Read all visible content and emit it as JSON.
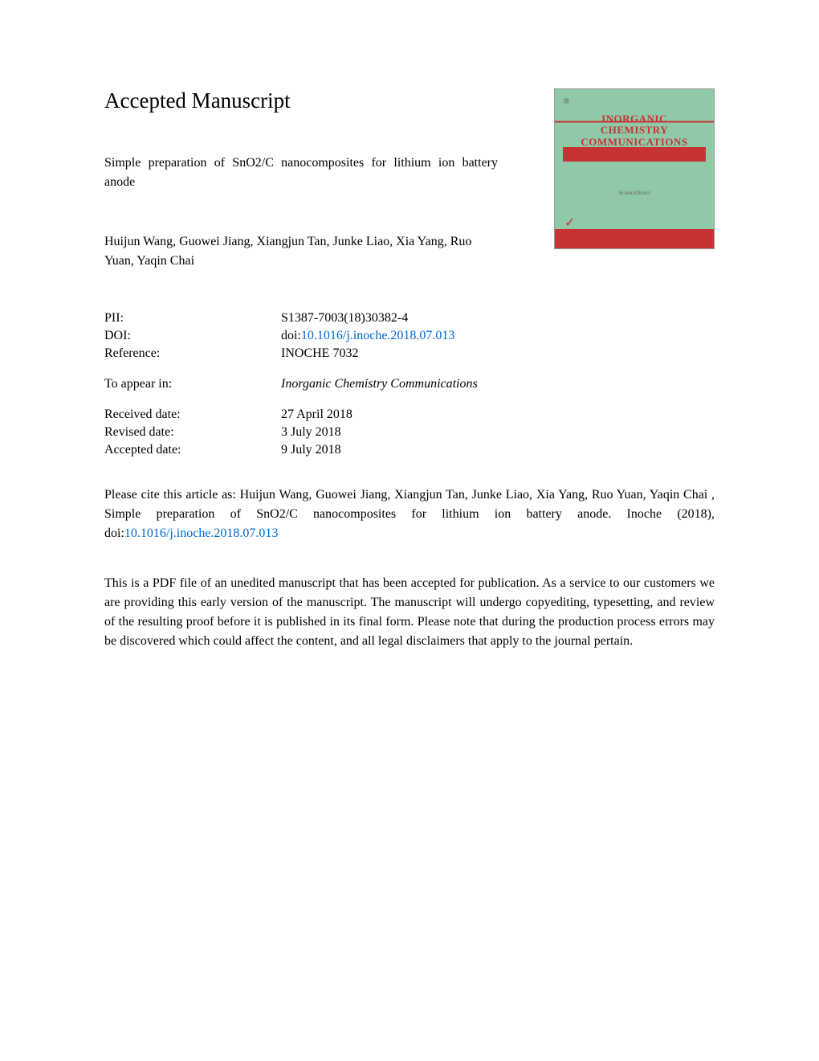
{
  "page_title": "Accepted Manuscript",
  "article_title": "Simple preparation of SnO2/C nanocomposites for lithium ion battery anode",
  "authors": "Huijun Wang, Guowei Jiang, Xiangjun Tan, Junke Liao, Xia Yang, Ruo Yuan, Yaqin Chai",
  "journal_cover": {
    "title_line1": "INORGANIC",
    "title_line2": "CHEMISTRY",
    "title_line3": "COMMUNICATIONS",
    "center_text": "ScienceDirect",
    "bg_color": "#8fc9a8",
    "accent_color": "#c73333"
  },
  "metadata": {
    "pii_label": "PII:",
    "pii_value": "S1387-7003(18)30382-4",
    "doi_label": "DOI:",
    "doi_prefix": "doi:",
    "doi_link": "10.1016/j.inoche.2018.07.013",
    "reference_label": "Reference:",
    "reference_value": "INOCHE 7032",
    "appear_label": "To appear in:",
    "appear_value": "Inorganic Chemistry Communications",
    "received_label": "Received date:",
    "received_value": "27 April 2018",
    "revised_label": "Revised date:",
    "revised_value": "3 July 2018",
    "accepted_label": "Accepted date:",
    "accepted_value": "9 July 2018"
  },
  "citation": {
    "prefix": "Please cite this article as: Huijun Wang, Guowei Jiang, Xiangjun Tan, Junke Liao, Xia Yang, Ruo Yuan, Yaqin Chai , Simple preparation of SnO2/C nanocomposites for lithium ion battery anode. Inoche (2018), doi:",
    "link": "10.1016/j.inoche.2018.07.013"
  },
  "disclaimer": "This is a PDF file of an unedited manuscript that has been accepted for publication. As a service to our customers we are providing this early version of the manuscript. The manuscript will undergo copyediting, typesetting, and review of the resulting proof before it is published in its final form. Please note that during the production process errors may be discovered which could affect the content, and all legal disclaimers that apply to the journal pertain.",
  "colors": {
    "text": "#000000",
    "link": "#0066cc",
    "background": "#ffffff"
  },
  "typography": {
    "body_font": "Georgia, Times New Roman, serif",
    "title_size_pt": 20,
    "body_size_pt": 12
  }
}
